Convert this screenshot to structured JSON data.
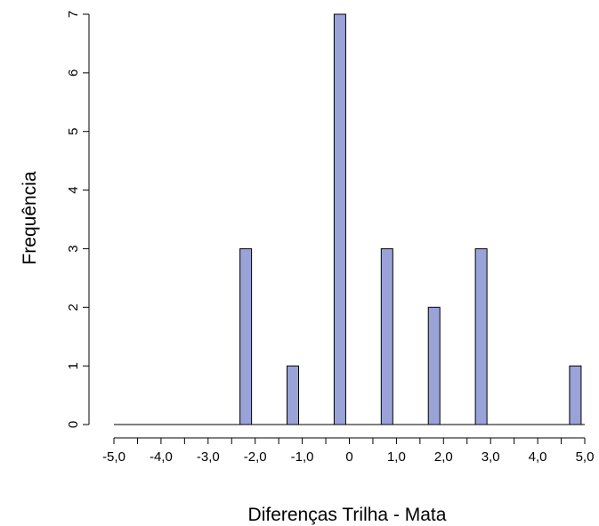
{
  "chart_data": {
    "type": "bar",
    "title": "",
    "xlabel": "Diferenças Trilha - Mata",
    "ylabel": "Frequência",
    "xlim": [
      -5,
      5
    ],
    "ylim": [
      0,
      7
    ],
    "x_tick_labels": [
      "-5,0",
      "-4,0",
      "-3,0",
      "-2,0",
      "-1,0",
      "0",
      "1,0",
      "2,0",
      "3,0",
      "4,0",
      "5,0"
    ],
    "y_tick_labels": [
      "0",
      "1",
      "2",
      "3",
      "4",
      "5",
      "6",
      "7"
    ],
    "bars": [
      {
        "x": -2.2,
        "value": 3
      },
      {
        "x": -1.2,
        "value": 1
      },
      {
        "x": -0.2,
        "value": 7
      },
      {
        "x": 0.8,
        "value": 3
      },
      {
        "x": 1.8,
        "value": 2
      },
      {
        "x": 2.8,
        "value": 3
      },
      {
        "x": 4.8,
        "value": 1
      }
    ],
    "bar_color": "#9aa3d8",
    "bar_edge_color": "#000000",
    "grid": false
  }
}
